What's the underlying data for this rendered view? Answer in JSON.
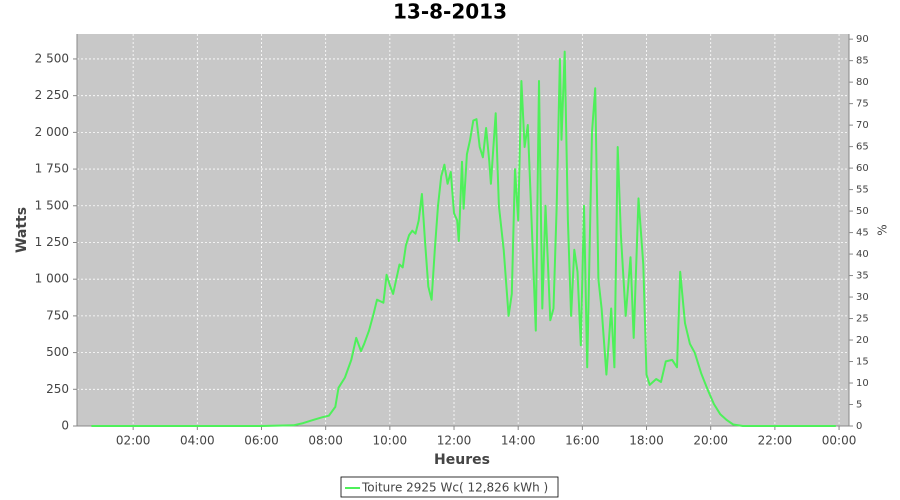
{
  "chart_data": {
    "type": "line",
    "title": "13-8-2013",
    "x_label": "Heures",
    "y_label": "Watts",
    "y2_label": "%",
    "x": [
      0.7,
      6.0,
      7.0,
      7.3,
      7.6,
      7.9,
      8.1,
      8.3,
      8.4,
      8.6,
      8.8,
      8.95,
      9.1,
      9.2,
      9.35,
      9.5,
      9.6,
      9.8,
      9.9,
      10.0,
      10.1,
      10.2,
      10.3,
      10.4,
      10.5,
      10.6,
      10.7,
      10.8,
      10.9,
      11.0,
      11.1,
      11.2,
      11.3,
      11.4,
      11.5,
      11.6,
      11.7,
      11.8,
      11.9,
      12.0,
      12.1,
      12.15,
      12.25,
      12.3,
      12.4,
      12.5,
      12.6,
      12.7,
      12.8,
      12.9,
      13.0,
      13.1,
      13.15,
      13.3,
      13.4,
      13.55,
      13.7,
      13.8,
      13.9,
      14.0,
      14.1,
      14.2,
      14.3,
      14.4,
      14.55,
      14.65,
      14.75,
      14.85,
      15.0,
      15.1,
      15.2,
      15.3,
      15.35,
      15.45,
      15.55,
      15.65,
      15.75,
      15.85,
      15.95,
      16.05,
      16.15,
      16.3,
      16.4,
      16.5,
      16.6,
      16.75,
      16.9,
      17.0,
      17.1,
      17.2,
      17.35,
      17.5,
      17.6,
      17.75,
      17.9,
      18.0,
      18.1,
      18.3,
      18.45,
      18.6,
      18.8,
      18.95,
      19.05,
      19.2,
      19.35,
      19.5,
      19.7,
      19.9,
      20.1,
      20.3,
      20.5,
      20.7,
      21.0,
      23.9
    ],
    "series": [
      {
        "name": "Toiture 2925 Wc( 12,826 kWh )",
        "color": "#4ef05a",
        "values": [
          0,
          0,
          5,
          20,
          40,
          60,
          70,
          130,
          260,
          330,
          450,
          600,
          510,
          560,
          650,
          770,
          860,
          840,
          1030,
          960,
          900,
          1000,
          1100,
          1080,
          1230,
          1300,
          1330,
          1310,
          1400,
          1580,
          1250,
          950,
          860,
          1200,
          1500,
          1700,
          1780,
          1650,
          1730,
          1450,
          1400,
          1260,
          1800,
          1480,
          1850,
          1950,
          2080,
          2090,
          1900,
          1830,
          2030,
          1800,
          1650,
          2130,
          1500,
          1200,
          750,
          900,
          1750,
          1400,
          2350,
          1900,
          2050,
          1500,
          650,
          2350,
          800,
          1500,
          720,
          800,
          1500,
          2500,
          1950,
          2550,
          1400,
          750,
          1200,
          1050,
          550,
          1500,
          400,
          2000,
          2300,
          1000,
          800,
          350,
          800,
          400,
          1900,
          1300,
          750,
          1150,
          600,
          1550,
          1100,
          350,
          280,
          320,
          300,
          440,
          450,
          400,
          1050,
          700,
          560,
          500,
          360,
          250,
          150,
          80,
          40,
          10,
          0,
          0
        ]
      }
    ],
    "xlim": [
      0.25,
      24.31
    ],
    "xticks": [
      {
        "value": 2,
        "label": "02:00"
      },
      {
        "value": 4,
        "label": "04:00"
      },
      {
        "value": 6,
        "label": "06:00"
      },
      {
        "value": 8,
        "label": "08:00"
      },
      {
        "value": 10,
        "label": "10:00"
      },
      {
        "value": 12,
        "label": "12:00"
      },
      {
        "value": 14,
        "label": "14:00"
      },
      {
        "value": 16,
        "label": "16:00"
      },
      {
        "value": 18,
        "label": "18:00"
      },
      {
        "value": 20,
        "label": "20:00"
      },
      {
        "value": 22,
        "label": "22:00"
      },
      {
        "value": 24,
        "label": "00:00"
      }
    ],
    "ylim": [
      0,
      2670
    ],
    "yticks": [
      0,
      250,
      500,
      750,
      {
        "value": 1000,
        "label": "1 000"
      },
      {
        "value": 1250,
        "label": "1 250"
      },
      {
        "value": 1500,
        "label": "1 500"
      },
      {
        "value": 1750,
        "label": "1 750"
      },
      {
        "value": 2000,
        "label": "2 000"
      },
      {
        "value": 2250,
        "label": "2 250"
      },
      {
        "value": 2500,
        "label": "2 500"
      }
    ],
    "y2lim": [
      0,
      91.2
    ],
    "y2ticks": [
      0,
      5,
      10,
      15,
      20,
      25,
      30,
      35,
      40,
      45,
      50,
      55,
      60,
      65,
      70,
      75,
      80,
      85,
      90
    ],
    "grid": true,
    "legend": "bottom"
  }
}
